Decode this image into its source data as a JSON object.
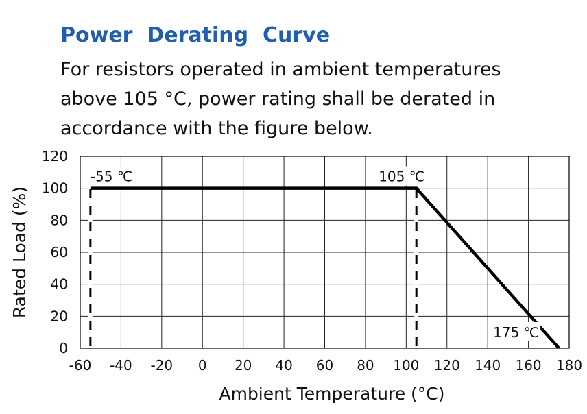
{
  "page": {
    "title": "Power  Derating  Curve",
    "description": "For resistors operated in ambient temperatures\nabove 105 °C,  power rating shall be derated in\naccordance with the figure below."
  },
  "chart_data": {
    "type": "line",
    "title": "",
    "xlabel": "Ambient Temperature  (°C)",
    "ylabel": "Rated Load (%)",
    "xlim": [
      -60,
      180
    ],
    "ylim": [
      0,
      120
    ],
    "x_ticks": [
      -60,
      -40,
      -20,
      0,
      20,
      40,
      60,
      80,
      100,
      120,
      140,
      160,
      180
    ],
    "x_tick_labels": [
      "-60",
      "-40",
      "-20",
      "0",
      "20",
      "40",
      "60",
      "80",
      "100",
      "120",
      "140",
      "160",
      "180"
    ],
    "y_ticks": [
      0,
      20,
      40,
      60,
      80,
      100,
      120
    ],
    "y_tick_labels": [
      "0",
      "20",
      "40",
      "60",
      "80",
      "100",
      "120"
    ],
    "grid": true,
    "series": [
      {
        "x": [
          -55,
          105,
          175
        ],
        "y": [
          100,
          100,
          0
        ],
        "color": "#000000"
      }
    ],
    "reference_lines": [
      {
        "x": -55,
        "y_from": 0,
        "y_to": 100,
        "style": "dashed"
      },
      {
        "x": 105,
        "y_from": 0,
        "y_to": 100,
        "style": "dashed"
      }
    ],
    "annotations": [
      {
        "text": "-55 ℃",
        "x": -55,
        "y": 100
      },
      {
        "text": "105 ℃",
        "x": 105,
        "y": 100
      },
      {
        "text": "175 ℃",
        "x": 175,
        "y": 0
      }
    ]
  }
}
